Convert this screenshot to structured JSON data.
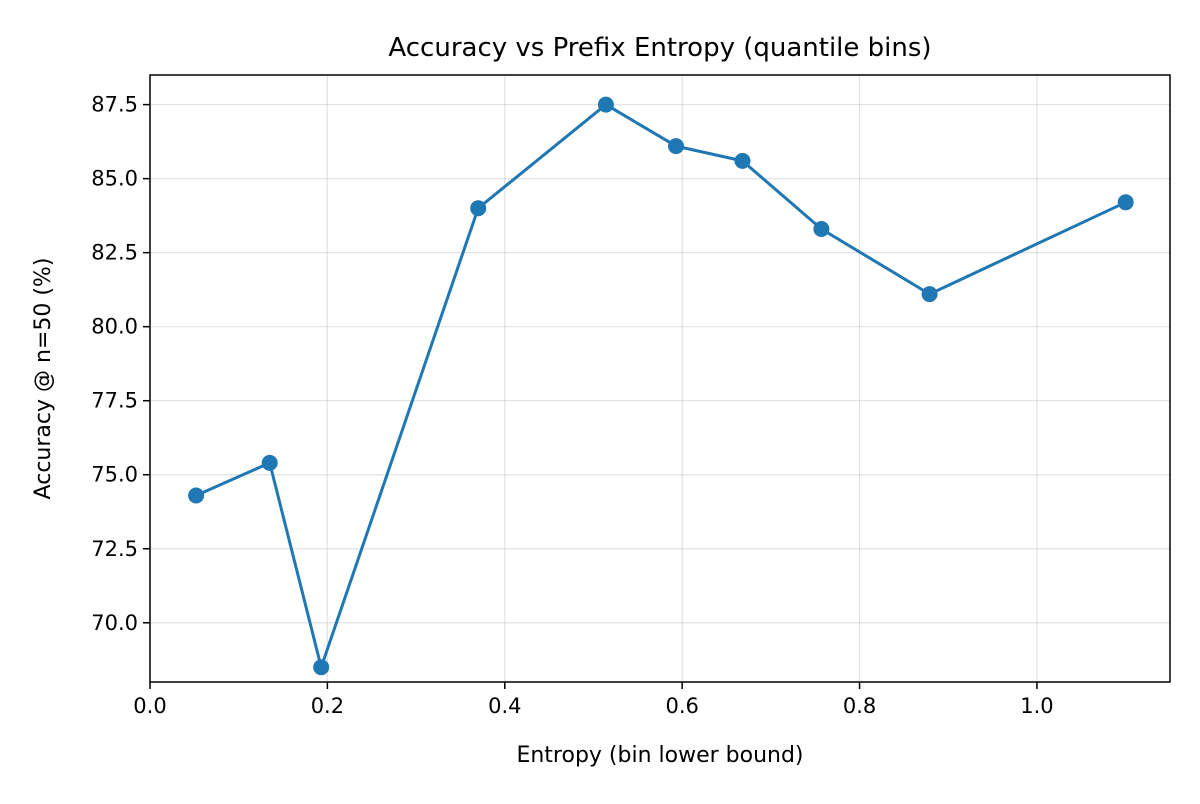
{
  "chart_data": {
    "type": "line",
    "title": "Accuracy vs Prefix Entropy (quantile bins)",
    "xlabel": "Entropy (bin lower bound)",
    "ylabel": "Accuracy @ n=50 (%)",
    "xlim": [
      0.0,
      1.15
    ],
    "ylim": [
      68.0,
      88.5
    ],
    "xticks": [
      0.0,
      0.2,
      0.4,
      0.6,
      0.8,
      1.0
    ],
    "xtick_labels": [
      "0.0",
      "0.2",
      "0.4",
      "0.6",
      "0.8",
      "1.0"
    ],
    "yticks": [
      70.0,
      72.5,
      75.0,
      77.5,
      80.0,
      82.5,
      85.0,
      87.5
    ],
    "ytick_labels": [
      "70.0",
      "72.5",
      "75.0",
      "77.5",
      "80.0",
      "82.5",
      "85.0",
      "87.5"
    ],
    "grid": true,
    "series": [
      {
        "color": "#1f77b4",
        "marker": "circle",
        "x": [
          0.052,
          0.135,
          0.193,
          0.37,
          0.514,
          0.593,
          0.668,
          0.757,
          0.879,
          1.1
        ],
        "y": [
          74.3,
          75.4,
          68.5,
          84.0,
          87.5,
          86.1,
          85.6,
          83.3,
          81.1,
          84.2
        ]
      }
    ]
  }
}
